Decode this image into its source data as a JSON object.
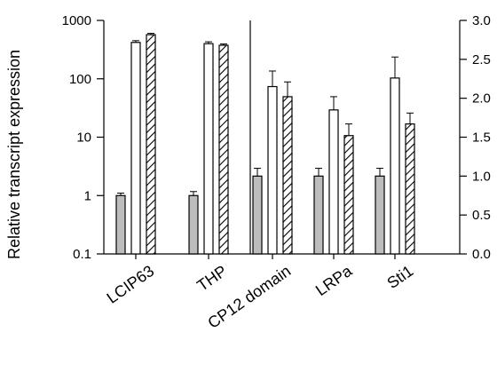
{
  "chart_data": {
    "type": "bar",
    "title": "",
    "ylabel": "Relative transcript expression",
    "categories": [
      "LCIP63",
      "THP",
      "CP12 domain",
      "LRPa",
      "Sti1"
    ],
    "panels": [
      {
        "axis": "left",
        "scale": "log",
        "ylim": [
          0.1,
          1000
        ],
        "yticks": [
          "0.1",
          "1",
          "10",
          "100",
          "1000"
        ],
        "category_indices": [
          0,
          1
        ]
      },
      {
        "axis": "right",
        "scale": "linear",
        "ylim": [
          0.0,
          3.0
        ],
        "yticks": [
          "0.0",
          "0.5",
          "1.0",
          "1.5",
          "2.0",
          "2.5",
          "3.0"
        ],
        "category_indices": [
          2,
          3,
          4
        ]
      }
    ],
    "series": [
      {
        "fill": "gray",
        "color": "#bdbdbd",
        "values": [
          1.0,
          1.0,
          1.0,
          1.0,
          1.0
        ],
        "errors": [
          0.1,
          0.17,
          0.1,
          0.1,
          0.1
        ]
      },
      {
        "fill": "white",
        "color": "#ffffff",
        "values": [
          420,
          400,
          2.15,
          1.85,
          2.26
        ],
        "errors": [
          30,
          30,
          0.2,
          0.17,
          0.27
        ]
      },
      {
        "fill": "hatched",
        "color": "#ffffff",
        "values": [
          570,
          375,
          2.02,
          1.52,
          1.67
        ],
        "errors": [
          30,
          20,
          0.19,
          0.15,
          0.14
        ]
      }
    ],
    "grid": false,
    "legend": "none"
  }
}
